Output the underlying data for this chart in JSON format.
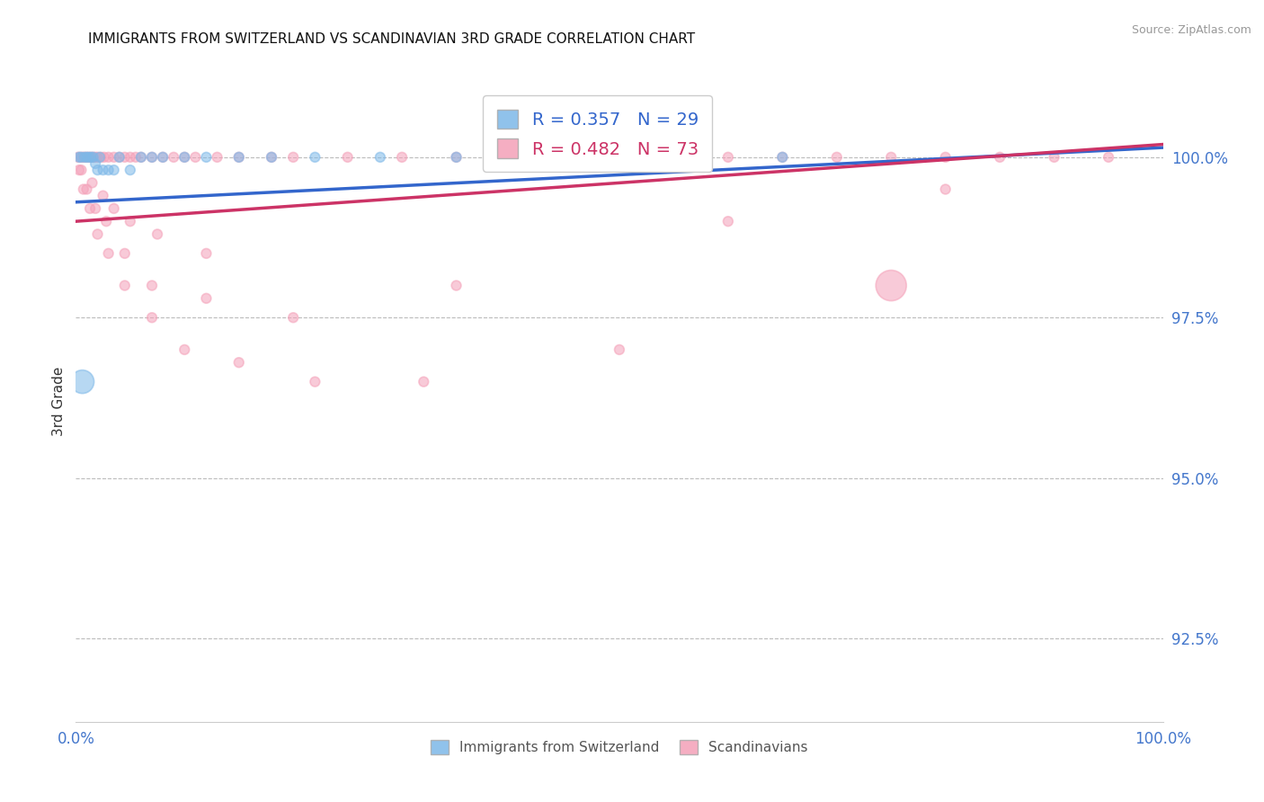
{
  "title": "IMMIGRANTS FROM SWITZERLAND VS SCANDINAVIAN 3RD GRADE CORRELATION CHART",
  "source": "Source: ZipAtlas.com",
  "ylabel": "3rd Grade",
  "xlim": [
    0.0,
    100.0
  ],
  "ylim": [
    91.2,
    101.2
  ],
  "yticks": [
    92.5,
    95.0,
    97.5,
    100.0
  ],
  "xticks": [
    0.0,
    25.0,
    50.0,
    75.0,
    100.0
  ],
  "xtick_labels": [
    "0.0%",
    "",
    "",
    "",
    "100.0%"
  ],
  "ytick_labels": [
    "92.5%",
    "95.0%",
    "97.5%",
    "100.0%"
  ],
  "legend_blue_label": "Immigrants from Switzerland",
  "legend_pink_label": "Scandinavians",
  "R_blue": 0.357,
  "N_blue": 29,
  "R_pink": 0.482,
  "N_pink": 73,
  "blue_color": "#7db8e8",
  "pink_color": "#f4a0b8",
  "blue_line_color": "#3366cc",
  "pink_line_color": "#cc3366",
  "title_color": "#111111",
  "axis_label_color": "#333333",
  "tick_color": "#4477cc",
  "grid_color": "#bbbbbb",
  "background_color": "#ffffff",
  "blue_scatter_x": [
    0.3,
    0.5,
    0.8,
    1.0,
    1.2,
    1.4,
    1.6,
    1.8,
    2.0,
    2.2,
    2.5,
    3.0,
    3.5,
    4.0,
    5.0,
    6.0,
    7.0,
    8.0,
    10.0,
    12.0,
    15.0,
    18.0,
    22.0,
    28.0,
    35.0,
    45.0,
    55.0,
    65.0,
    0.6
  ],
  "blue_scatter_y": [
    100.0,
    100.0,
    100.0,
    100.0,
    100.0,
    100.0,
    100.0,
    99.9,
    99.8,
    100.0,
    99.8,
    99.8,
    99.8,
    100.0,
    99.8,
    100.0,
    100.0,
    100.0,
    100.0,
    100.0,
    100.0,
    100.0,
    100.0,
    100.0,
    100.0,
    100.0,
    100.0,
    100.0,
    96.5
  ],
  "blue_scatter_size": [
    60,
    60,
    60,
    60,
    60,
    60,
    60,
    60,
    60,
    60,
    60,
    60,
    60,
    60,
    60,
    60,
    60,
    60,
    60,
    60,
    60,
    60,
    60,
    60,
    60,
    60,
    60,
    60,
    350
  ],
  "pink_scatter_x": [
    0.2,
    0.4,
    0.6,
    0.8,
    1.0,
    1.2,
    1.4,
    1.6,
    1.8,
    2.0,
    2.3,
    2.6,
    3.0,
    3.5,
    4.0,
    4.5,
    5.0,
    5.5,
    6.0,
    7.0,
    8.0,
    9.0,
    10.0,
    11.0,
    13.0,
    15.0,
    18.0,
    20.0,
    25.0,
    30.0,
    35.0,
    40.0,
    45.0,
    50.0,
    55.0,
    60.0,
    65.0,
    70.0,
    75.0,
    80.0,
    85.0,
    90.0,
    95.0,
    1.5,
    2.5,
    3.5,
    5.0,
    7.5,
    12.0,
    0.5,
    1.0,
    1.8,
    2.8,
    4.5,
    7.0,
    12.0,
    20.0,
    35.0,
    60.0,
    80.0,
    0.3,
    0.7,
    1.3,
    2.0,
    3.0,
    4.5,
    7.0,
    10.0,
    15.0,
    22.0,
    32.0,
    50.0,
    75.0
  ],
  "pink_scatter_y": [
    100.0,
    100.0,
    100.0,
    100.0,
    100.0,
    100.0,
    100.0,
    100.0,
    100.0,
    100.0,
    100.0,
    100.0,
    100.0,
    100.0,
    100.0,
    100.0,
    100.0,
    100.0,
    100.0,
    100.0,
    100.0,
    100.0,
    100.0,
    100.0,
    100.0,
    100.0,
    100.0,
    100.0,
    100.0,
    100.0,
    100.0,
    100.0,
    100.0,
    100.0,
    100.0,
    100.0,
    100.0,
    100.0,
    100.0,
    100.0,
    100.0,
    100.0,
    100.0,
    99.6,
    99.4,
    99.2,
    99.0,
    98.8,
    98.5,
    99.8,
    99.5,
    99.2,
    99.0,
    98.5,
    98.0,
    97.8,
    97.5,
    98.0,
    99.0,
    99.5,
    99.8,
    99.5,
    99.2,
    98.8,
    98.5,
    98.0,
    97.5,
    97.0,
    96.8,
    96.5,
    96.5,
    97.0,
    98.0
  ],
  "pink_scatter_size": [
    60,
    60,
    60,
    60,
    60,
    60,
    60,
    60,
    60,
    60,
    60,
    60,
    60,
    60,
    60,
    60,
    60,
    60,
    60,
    60,
    60,
    60,
    60,
    60,
    60,
    60,
    60,
    60,
    60,
    60,
    60,
    60,
    60,
    60,
    60,
    60,
    60,
    60,
    60,
    60,
    60,
    60,
    60,
    60,
    60,
    60,
    60,
    60,
    60,
    60,
    60,
    60,
    60,
    60,
    60,
    60,
    60,
    60,
    60,
    60,
    60,
    60,
    60,
    60,
    60,
    60,
    60,
    60,
    60,
    60,
    60,
    60,
    600
  ],
  "blue_trend_x": [
    0.0,
    100.0
  ],
  "blue_trend_y": [
    99.3,
    100.15
  ],
  "pink_trend_x": [
    0.0,
    100.0
  ],
  "pink_trend_y": [
    99.0,
    100.2
  ]
}
